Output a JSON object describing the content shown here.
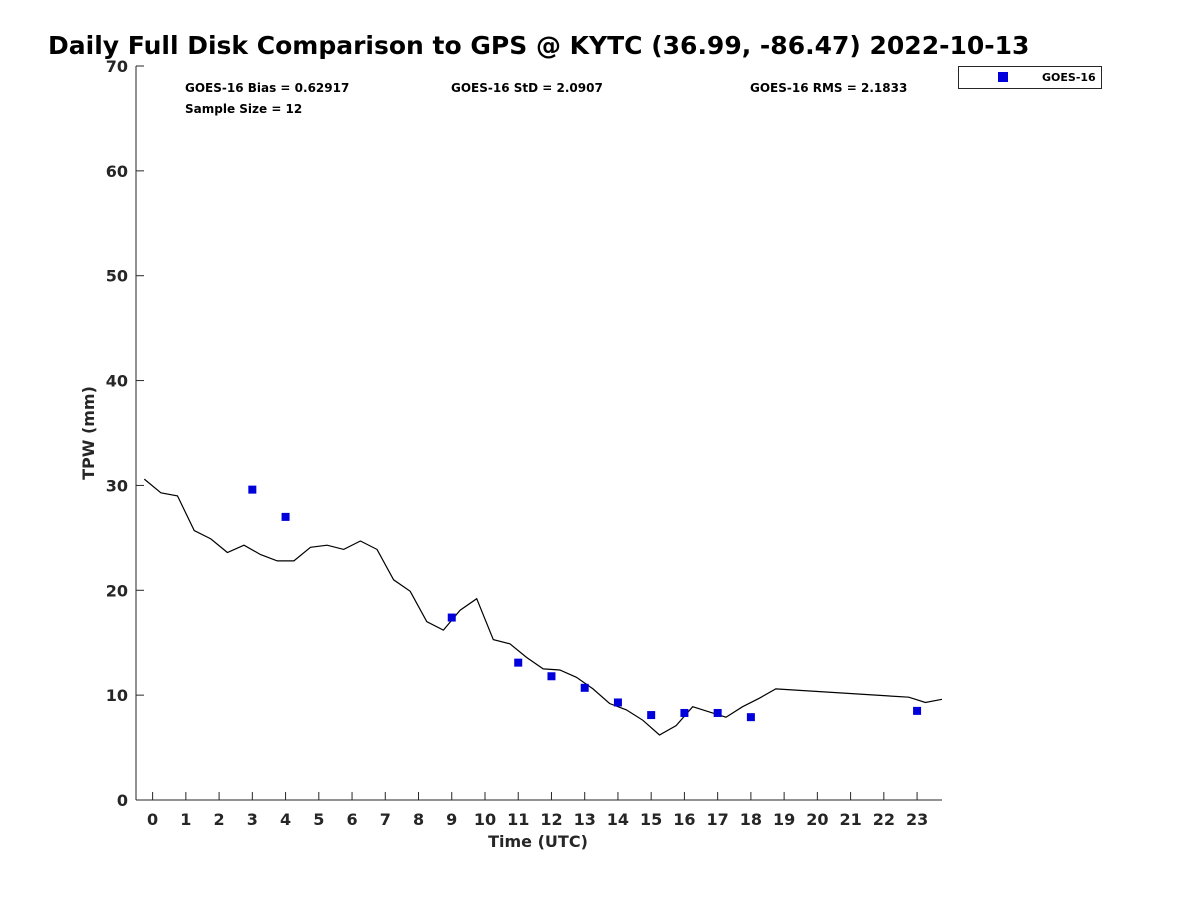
{
  "chart_data": {
    "type": "scatter",
    "title": "Daily Full Disk Comparison to GPS @ KYTC (36.99, -86.47) 2022-10-13",
    "xlabel": "Time (UTC)",
    "ylabel": "TPW (mm)",
    "xlim": [
      -0.5,
      23.75
    ],
    "ylim": [
      0,
      70
    ],
    "xticks": [
      0,
      1,
      2,
      3,
      4,
      5,
      6,
      7,
      8,
      9,
      10,
      11,
      12,
      13,
      14,
      15,
      16,
      17,
      18,
      19,
      20,
      21,
      22,
      23
    ],
    "yticks": [
      0,
      10,
      20,
      30,
      40,
      50,
      60,
      70
    ],
    "stats": {
      "bias": "GOES-16 Bias = 0.62917",
      "std": "GOES-16 StD = 2.0907",
      "rms": "GOES-16 RMS = 2.1833",
      "sample": "Sample Size = 12"
    },
    "legend": {
      "position": "top-right-outside",
      "entries": [
        "GOES-16"
      ]
    },
    "grid": false,
    "series": [
      {
        "name": "GOES-16",
        "kind": "scatter",
        "color": "#0000dd",
        "x": [
          3,
          4,
          9,
          11,
          12,
          13,
          14,
          15,
          16,
          17,
          18,
          23
        ],
        "y": [
          29.6,
          27.0,
          17.4,
          13.1,
          11.8,
          10.7,
          9.3,
          8.1,
          8.3,
          8.3,
          7.9,
          8.5
        ]
      },
      {
        "kind": "line",
        "color": "#000000",
        "x": [
          -0.25,
          0.25,
          0.75,
          1.25,
          1.75,
          2.25,
          2.75,
          3.25,
          3.75,
          4.25,
          4.75,
          5.25,
          5.75,
          6.25,
          6.75,
          7.25,
          7.75,
          8.25,
          8.75,
          9.25,
          9.75,
          10.25,
          10.75,
          11.25,
          11.75,
          12.25,
          12.75,
          13.25,
          13.75,
          14.25,
          14.75,
          15.25,
          15.75,
          16.25,
          16.75,
          17.25,
          17.75,
          18.25,
          18.75,
          22.75,
          23.25,
          23.75
        ],
        "y": [
          30.6,
          29.3,
          29.0,
          25.7,
          24.9,
          23.6,
          24.3,
          23.4,
          22.8,
          22.8,
          24.1,
          24.3,
          23.9,
          24.7,
          23.9,
          21.0,
          19.9,
          17.0,
          16.2,
          18.1,
          19.2,
          15.3,
          14.9,
          13.6,
          12.5,
          12.4,
          11.7,
          10.6,
          9.2,
          8.6,
          7.6,
          6.2,
          7.1,
          8.9,
          8.4,
          7.9,
          8.9,
          9.7,
          10.6,
          9.8,
          9.3,
          9.6
        ]
      }
    ]
  }
}
